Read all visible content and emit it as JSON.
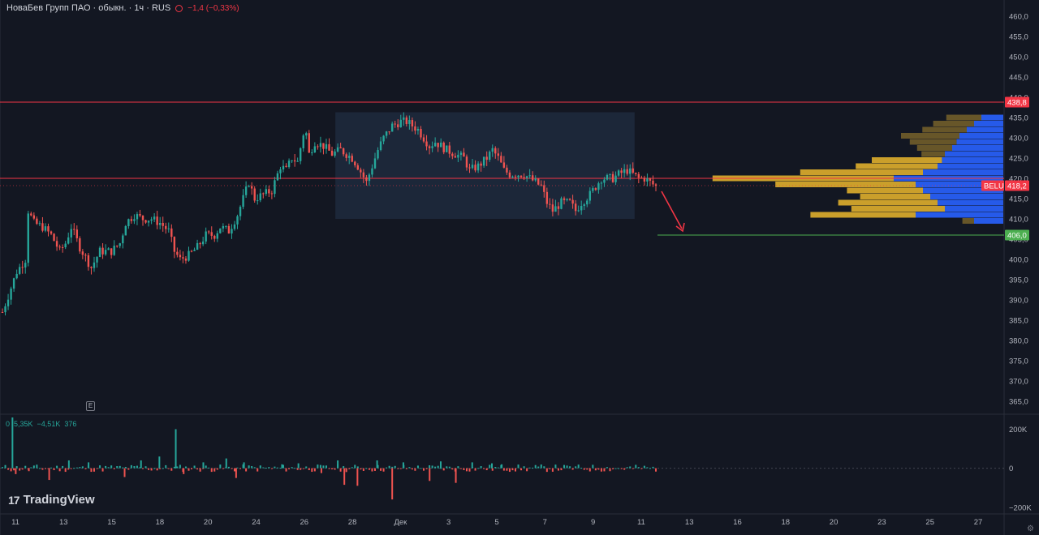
{
  "header": {
    "symbol": "НоваБев Групп ПАО · обыкн. · 1ч · RUS",
    "change": "−1,4 (−0,33%)"
  },
  "volume_legend": {
    "v1": "0",
    "v2": "5,35K",
    "v3": "−4,51K",
    "v4": "376"
  },
  "e_marker": "E",
  "logo": {
    "mark": "17",
    "text": "TradingView"
  },
  "colors": {
    "background": "#131722",
    "up": "#26a69a",
    "down": "#ef5350",
    "resistance_line": "#f23645",
    "target_line": "#4caf50",
    "profile_buy": "#2962ff",
    "profile_sell": "#d4a72c",
    "range_box": "#1e2a3d"
  },
  "chart_data": [
    {
      "type": "candlestick",
      "ylim": [
        362,
        464
      ],
      "y_ticks": [
        "465,0",
        "460,0",
        "455,0",
        "450,0",
        "445,0",
        "440,0",
        "435,0",
        "430,0",
        "425,0",
        "420,0",
        "415,0",
        "410,0",
        "405,0",
        "400,0",
        "395,0",
        "390,0",
        "385,0",
        "380,0",
        "375,0",
        "370,0",
        "365,0"
      ],
      "x_ticks": [
        "11",
        "13",
        "15",
        "18",
        "20",
        "24",
        "26",
        "28",
        "Дек",
        "3",
        "5",
        "7",
        "9",
        "11",
        "13",
        "16",
        "18",
        "20",
        "23",
        "25",
        "27"
      ],
      "price_path": [
        [
          0,
          387
        ],
        [
          2,
          391
        ],
        [
          5,
          397
        ],
        [
          8,
          400
        ],
        [
          9,
          412
        ],
        [
          11,
          409
        ],
        [
          14,
          408
        ],
        [
          17,
          406
        ],
        [
          20,
          402
        ],
        [
          22,
          404
        ],
        [
          24,
          408
        ],
        [
          27,
          403
        ],
        [
          31,
          398
        ],
        [
          34,
          402
        ],
        [
          38,
          402
        ],
        [
          41,
          404
        ],
        [
          43,
          409
        ],
        [
          46,
          411
        ],
        [
          49,
          410
        ],
        [
          52,
          410
        ],
        [
          55,
          409
        ],
        [
          58,
          407
        ],
        [
          60,
          402
        ],
        [
          62,
          400
        ],
        [
          65,
          401
        ],
        [
          68,
          403
        ],
        [
          71,
          406
        ],
        [
          74,
          406
        ],
        [
          76,
          408
        ],
        [
          79,
          407
        ],
        [
          82,
          411
        ],
        [
          84,
          415
        ],
        [
          86,
          419
        ],
        [
          88,
          415
        ],
        [
          91,
          416
        ],
        [
          94,
          417
        ],
        [
          97,
          423
        ],
        [
          99,
          422
        ],
        [
          101,
          425
        ],
        [
          103,
          424
        ],
        [
          105,
          431
        ],
        [
          106,
          431
        ],
        [
          107,
          426
        ],
        [
          109,
          429
        ],
        [
          112,
          428
        ],
        [
          115,
          426
        ],
        [
          118,
          427
        ],
        [
          120,
          426
        ],
        [
          122,
          425
        ],
        [
          124,
          423
        ],
        [
          127,
          419
        ],
        [
          129,
          423
        ],
        [
          131,
          427
        ],
        [
          133,
          430
        ],
        [
          136,
          433
        ],
        [
          139,
          434
        ],
        [
          141,
          434
        ],
        [
          143,
          433
        ],
        [
          145,
          432
        ],
        [
          147,
          430
        ],
        [
          149,
          428
        ],
        [
          151,
          429
        ],
        [
          153,
          428
        ],
        [
          155,
          427
        ],
        [
          158,
          426
        ],
        [
          161,
          425
        ],
        [
          163,
          422
        ],
        [
          166,
          423
        ],
        [
          169,
          425
        ],
        [
          171,
          427
        ],
        [
          173,
          425
        ],
        [
          175,
          422
        ],
        [
          177,
          421
        ],
        [
          179,
          421
        ],
        [
          182,
          421
        ],
        [
          184,
          420
        ],
        [
          186,
          419
        ],
        [
          188,
          418
        ],
        [
          190,
          414
        ],
        [
          192,
          412
        ],
        [
          195,
          414
        ],
        [
          198,
          414
        ],
        [
          200,
          412
        ],
        [
          202,
          414
        ],
        [
          205,
          416
        ],
        [
          207,
          418
        ],
        [
          209,
          420
        ],
        [
          211,
          420
        ],
        [
          213,
          420
        ],
        [
          215,
          421
        ],
        [
          218,
          422
        ],
        [
          220,
          421
        ],
        [
          222,
          420
        ],
        [
          224,
          420
        ],
        [
          226,
          419
        ],
        [
          228,
          418
        ]
      ],
      "annotations": {
        "resistance_upper": 438.8,
        "resistance_lower": 420.0,
        "current_price": 418.2,
        "target": 406.0,
        "range_box": {
          "from": 0.334,
          "to": 0.632,
          "low": 410,
          "high": 436.3
        }
      },
      "price_labels": {
        "resistance": "438,8",
        "current": "418,2",
        "target": "406,0",
        "belu": "BELU"
      },
      "volume_profile": [
        {
          "price": 435.0,
          "buy": 0.15,
          "sell": 0.3
        },
        {
          "price": 433.5,
          "buy": 0.2,
          "sell": 0.35
        },
        {
          "price": 432.0,
          "buy": 0.25,
          "sell": 0.38
        },
        {
          "price": 430.5,
          "buy": 0.3,
          "sell": 0.5
        },
        {
          "price": 429.0,
          "buy": 0.32,
          "sell": 0.4
        },
        {
          "price": 427.5,
          "buy": 0.35,
          "sell": 0.3
        },
        {
          "price": 426.0,
          "buy": 0.4,
          "sell": 0.2
        },
        {
          "price": 424.5,
          "buy": 0.42,
          "sell": 0.6
        },
        {
          "price": 423.0,
          "buy": 0.45,
          "sell": 0.7
        },
        {
          "price": 421.5,
          "buy": 0.55,
          "sell": 1.05
        },
        {
          "price": 420.0,
          "buy": 0.75,
          "sell": 1.55
        },
        {
          "price": 418.5,
          "buy": 0.6,
          "sell": 1.2
        },
        {
          "price": 417.0,
          "buy": 0.55,
          "sell": 0.65
        },
        {
          "price": 415.5,
          "buy": 0.5,
          "sell": 0.6
        },
        {
          "price": 414.0,
          "buy": 0.45,
          "sell": 0.85
        },
        {
          "price": 412.5,
          "buy": 0.4,
          "sell": 0.8
        },
        {
          "price": 411.0,
          "buy": 0.6,
          "sell": 0.9
        },
        {
          "price": 409.5,
          "buy": 0.2,
          "sell": 0.1
        }
      ]
    },
    {
      "type": "bar",
      "name": "volume delta",
      "ylim": [
        -230,
        260
      ],
      "y_ticks": [
        "200K",
        "0",
        "−200K"
      ],
      "spikes": [
        [
          0.019,
          300
        ],
        [
          0.024,
          -30
        ],
        [
          0.044,
          -15
        ],
        [
          0.075,
          -60
        ],
        [
          0.105,
          40
        ],
        [
          0.135,
          30
        ],
        [
          0.19,
          -45
        ],
        [
          0.215,
          40
        ],
        [
          0.243,
          60
        ],
        [
          0.268,
          200
        ],
        [
          0.28,
          -30
        ],
        [
          0.31,
          30
        ],
        [
          0.345,
          50
        ],
        [
          0.36,
          -50
        ],
        [
          0.372,
          30
        ],
        [
          0.43,
          20
        ],
        [
          0.455,
          25
        ],
        [
          0.49,
          -25
        ],
        [
          0.515,
          40
        ],
        [
          0.525,
          -85
        ],
        [
          0.545,
          -90
        ],
        [
          0.575,
          40
        ],
        [
          0.598,
          -160
        ],
        [
          0.615,
          30
        ],
        [
          0.655,
          -65
        ],
        [
          0.672,
          35
        ],
        [
          0.695,
          -75
        ],
        [
          0.72,
          30
        ],
        [
          0.75,
          25
        ],
        [
          0.765,
          20
        ]
      ]
    }
  ]
}
